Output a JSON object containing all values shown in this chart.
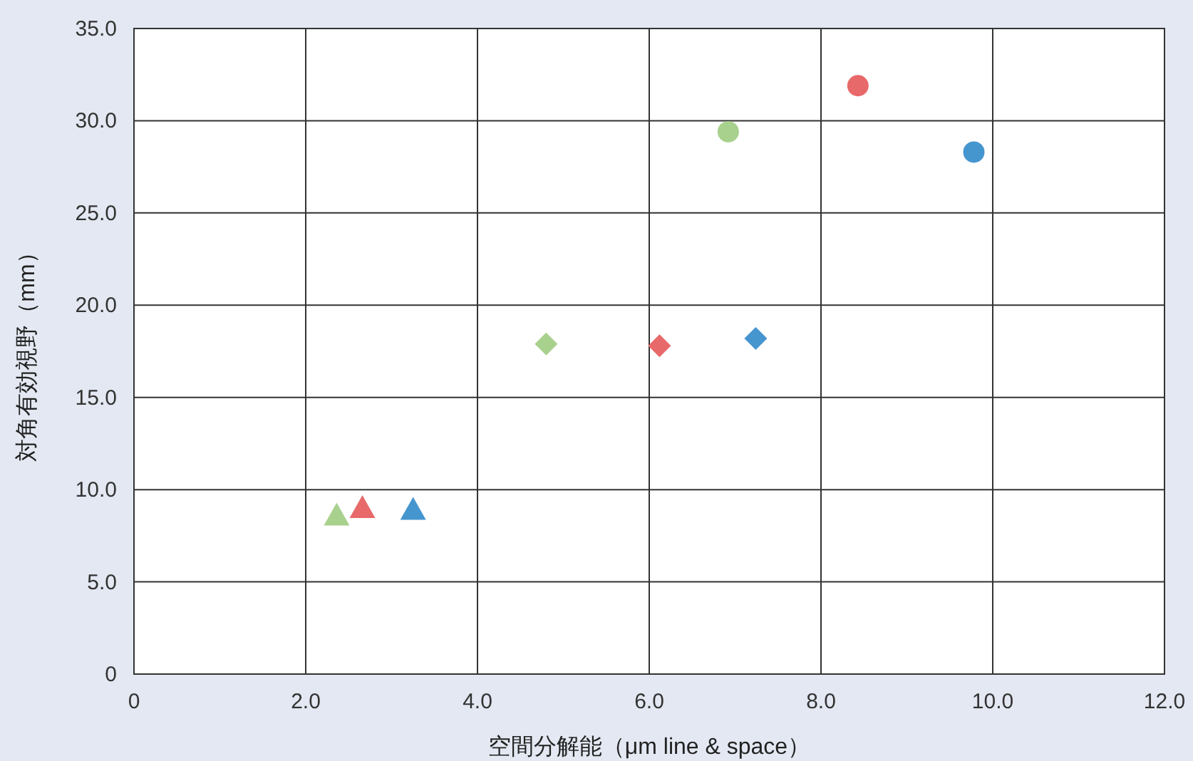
{
  "chart_data": {
    "type": "scatter",
    "xlabel": "空間分解能（μm  line & space）",
    "ylabel": "対角有効視野（mm）",
    "xlim": [
      0,
      12
    ],
    "ylim": [
      0,
      35
    ],
    "xticks": [
      0,
      {
        "value": 2,
        "label": "2.0"
      },
      {
        "value": 4,
        "label": "4.0"
      },
      {
        "value": 6,
        "label": "6.0"
      },
      {
        "value": 8,
        "label": "8.0"
      },
      {
        "value": 10,
        "label": "10.0"
      },
      {
        "value": 12,
        "label": "12.0"
      }
    ],
    "yticks": [
      0,
      {
        "value": 5,
        "label": "5.0"
      },
      {
        "value": 10,
        "label": "10.0"
      },
      {
        "value": 15,
        "label": "15.0"
      },
      {
        "value": 20,
        "label": "20.0"
      },
      {
        "value": 25,
        "label": "25.0"
      },
      {
        "value": 30,
        "label": "30.0"
      },
      {
        "value": 35,
        "label": "35.0"
      }
    ],
    "grid": true,
    "series": [
      {
        "marker": "triangle",
        "x": [
          2.36,
          2.66,
          3.25
        ],
        "values": [
          8.6,
          9.0,
          8.9
        ],
        "colors": [
          "#a9d18e",
          "#e8696a",
          "#4595cf"
        ]
      },
      {
        "marker": "diamond",
        "x": [
          4.8,
          6.12,
          7.24
        ],
        "values": [
          17.9,
          17.8,
          18.2
        ],
        "colors": [
          "#a9d18e",
          "#e8696a",
          "#4595cf"
        ]
      },
      {
        "marker": "circle",
        "x": [
          6.92,
          8.43,
          9.78
        ],
        "values": [
          29.4,
          31.9,
          28.3
        ],
        "colors": [
          "#a9d18e",
          "#e8696a",
          "#4595cf"
        ]
      }
    ]
  }
}
